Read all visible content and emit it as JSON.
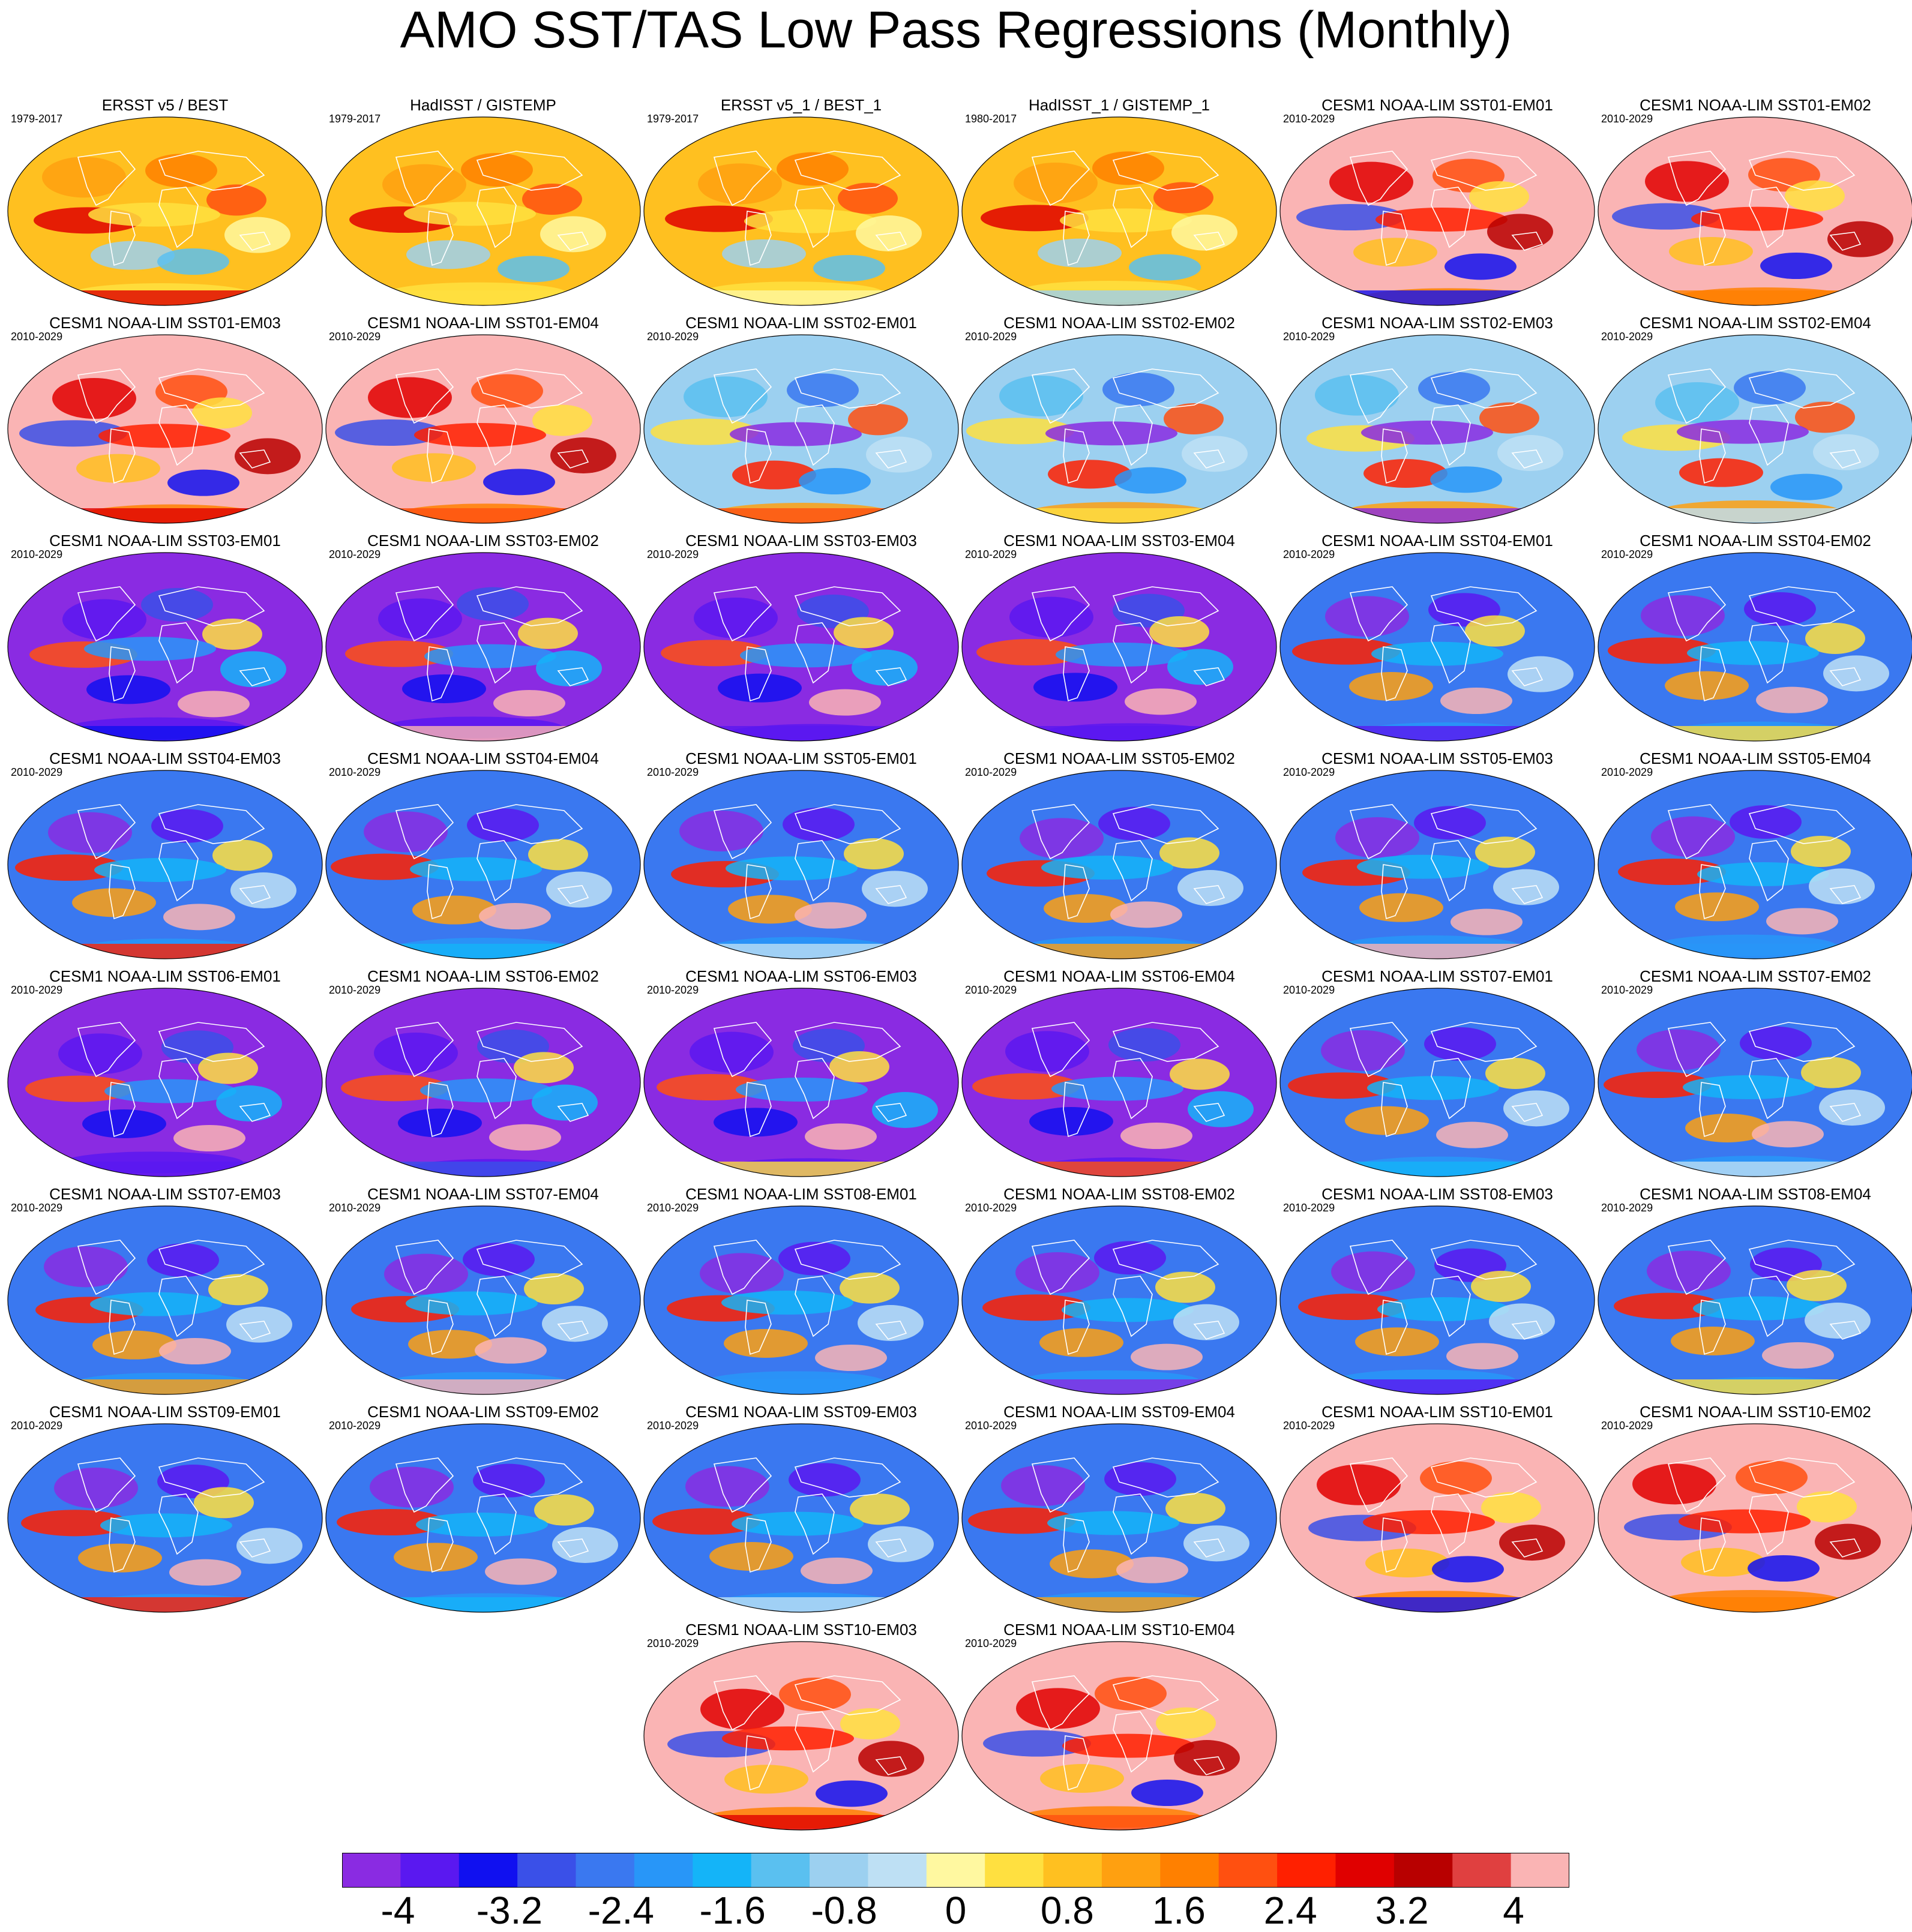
{
  "title": "AMO SST/TAS Low Pass Regressions (Monthly)",
  "panels": [
    {
      "title": "ERSST v5 / BEST",
      "period": "1979-2017",
      "pattern": "obs"
    },
    {
      "title": "HadISST / GISTEMP",
      "period": "1979-2017",
      "pattern": "obs"
    },
    {
      "title": "ERSST v5_1 / BEST_1",
      "period": "1979-2017",
      "pattern": "obs"
    },
    {
      "title": "HadISST_1 / GISTEMP_1",
      "period": "1980-2017",
      "pattern": "obs"
    },
    {
      "title": "CESM1 NOAA-LIM SST01-EM01",
      "period": "2010-2029",
      "pattern": "pink"
    },
    {
      "title": "CESM1 NOAA-LIM SST01-EM02",
      "period": "2010-2029",
      "pattern": "pink"
    },
    {
      "title": "CESM1 NOAA-LIM SST01-EM03",
      "period": "2010-2029",
      "pattern": "pink"
    },
    {
      "title": "CESM1 NOAA-LIM SST01-EM04",
      "period": "2010-2029",
      "pattern": "pink"
    },
    {
      "title": "CESM1 NOAA-LIM SST02-EM01",
      "period": "2010-2029",
      "pattern": "lightblue"
    },
    {
      "title": "CESM1 NOAA-LIM SST02-EM02",
      "period": "2010-2029",
      "pattern": "lightblue"
    },
    {
      "title": "CESM1 NOAA-LIM SST02-EM03",
      "period": "2010-2029",
      "pattern": "lightblue"
    },
    {
      "title": "CESM1 NOAA-LIM SST02-EM04",
      "period": "2010-2029",
      "pattern": "lightblue"
    },
    {
      "title": "CESM1 NOAA-LIM SST03-EM01",
      "period": "2010-2029",
      "pattern": "purple"
    },
    {
      "title": "CESM1 NOAA-LIM SST03-EM02",
      "period": "2010-2029",
      "pattern": "purple"
    },
    {
      "title": "CESM1 NOAA-LIM SST03-EM03",
      "period": "2010-2029",
      "pattern": "purple"
    },
    {
      "title": "CESM1 NOAA-LIM SST03-EM04",
      "period": "2010-2029",
      "pattern": "purple"
    },
    {
      "title": "CESM1 NOAA-LIM SST04-EM01",
      "period": "2010-2029",
      "pattern": "blue"
    },
    {
      "title": "CESM1 NOAA-LIM SST04-EM02",
      "period": "2010-2029",
      "pattern": "blue"
    },
    {
      "title": "CESM1 NOAA-LIM SST04-EM03",
      "period": "2010-2029",
      "pattern": "blue"
    },
    {
      "title": "CESM1 NOAA-LIM SST04-EM04",
      "period": "2010-2029",
      "pattern": "blue"
    },
    {
      "title": "CESM1 NOAA-LIM SST05-EM01",
      "period": "2010-2029",
      "pattern": "blue"
    },
    {
      "title": "CESM1 NOAA-LIM SST05-EM02",
      "period": "2010-2029",
      "pattern": "blue"
    },
    {
      "title": "CESM1 NOAA-LIM SST05-EM03",
      "period": "2010-2029",
      "pattern": "blue"
    },
    {
      "title": "CESM1 NOAA-LIM SST05-EM04",
      "period": "2010-2029",
      "pattern": "blue"
    },
    {
      "title": "CESM1 NOAA-LIM SST06-EM01",
      "period": "2010-2029",
      "pattern": "purple"
    },
    {
      "title": "CESM1 NOAA-LIM SST06-EM02",
      "period": "2010-2029",
      "pattern": "purple"
    },
    {
      "title": "CESM1 NOAA-LIM SST06-EM03",
      "period": "2010-2029",
      "pattern": "purple"
    },
    {
      "title": "CESM1 NOAA-LIM SST06-EM04",
      "period": "2010-2029",
      "pattern": "purple"
    },
    {
      "title": "CESM1 NOAA-LIM SST07-EM01",
      "period": "2010-2029",
      "pattern": "blue"
    },
    {
      "title": "CESM1 NOAA-LIM SST07-EM02",
      "period": "2010-2029",
      "pattern": "blue"
    },
    {
      "title": "CESM1 NOAA-LIM SST07-EM03",
      "period": "2010-2029",
      "pattern": "blue"
    },
    {
      "title": "CESM1 NOAA-LIM SST07-EM04",
      "period": "2010-2029",
      "pattern": "blue"
    },
    {
      "title": "CESM1 NOAA-LIM SST08-EM01",
      "period": "2010-2029",
      "pattern": "blue"
    },
    {
      "title": "CESM1 NOAA-LIM SST08-EM02",
      "period": "2010-2029",
      "pattern": "blue"
    },
    {
      "title": "CESM1 NOAA-LIM SST08-EM03",
      "period": "2010-2029",
      "pattern": "blue"
    },
    {
      "title": "CESM1 NOAA-LIM SST08-EM04",
      "period": "2010-2029",
      "pattern": "blue"
    },
    {
      "title": "CESM1 NOAA-LIM SST09-EM01",
      "period": "2010-2029",
      "pattern": "blue"
    },
    {
      "title": "CESM1 NOAA-LIM SST09-EM02",
      "period": "2010-2029",
      "pattern": "blue"
    },
    {
      "title": "CESM1 NOAA-LIM SST09-EM03",
      "period": "2010-2029",
      "pattern": "blue"
    },
    {
      "title": "CESM1 NOAA-LIM SST09-EM04",
      "period": "2010-2029",
      "pattern": "blue"
    },
    {
      "title": "CESM1 NOAA-LIM SST10-EM01",
      "period": "2010-2029",
      "pattern": "pink"
    },
    {
      "title": "CESM1 NOAA-LIM SST10-EM02",
      "period": "2010-2029",
      "pattern": "pink"
    },
    {
      "title": "CESM1 NOAA-LIM SST10-EM03",
      "period": "2010-2029",
      "pattern": "pink"
    },
    {
      "title": "CESM1 NOAA-LIM SST10-EM04",
      "period": "2010-2029",
      "pattern": "pink"
    }
  ],
  "colorbar": {
    "colors": [
      "#8a2be2",
      "#5a18f0",
      "#1010f0",
      "#3a50e8",
      "#3a78f0",
      "#2896f8",
      "#14b4f8",
      "#5ac0f0",
      "#9cd0f0",
      "#bee0f4",
      "#fff8a0",
      "#ffe040",
      "#ffc020",
      "#ffa010",
      "#ff8000",
      "#ff5010",
      "#ff2000",
      "#e00000",
      "#b80000",
      "#e04040",
      "#fab4b4"
    ],
    "tick_labels": [
      "-4",
      "-3.2",
      "-2.4",
      "-1.6",
      "-0.8",
      "0",
      "0.8",
      "1.6",
      "2.4",
      "3.2",
      "4"
    ],
    "min": -4.4,
    "max": 4.4
  }
}
